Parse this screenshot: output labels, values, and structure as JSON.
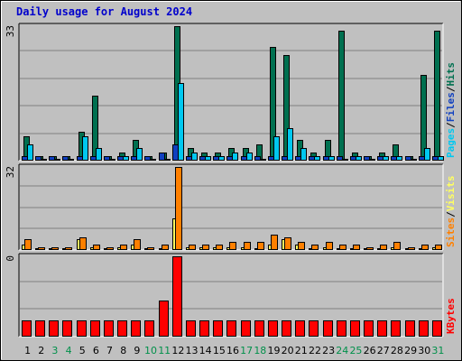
{
  "title": "Daily usage for August 2024",
  "colors": {
    "title": "#0000cc",
    "background": "#c0c0c0",
    "plot": "#c0c0c0",
    "grid": "#808080",
    "hits": "#007050",
    "files": "#00c8f0",
    "pages": "#1040c0",
    "visits": "#ffff60",
    "sites": "#ff8000",
    "kbytes": "#ff0000",
    "weekday_label": "#000000",
    "weekend_label": "#00904a"
  },
  "panels": {
    "top": {
      "max_label": "33",
      "legend": [
        {
          "label": "Pages",
          "color": "#00c8f0"
        },
        {
          "label": "/",
          "color": "#000000"
        },
        {
          "label": "Files",
          "color": "#1040c0"
        },
        {
          "label": "/",
          "color": "#000000"
        },
        {
          "label": "Hits",
          "color": "#007050"
        }
      ]
    },
    "middle": {
      "max_label": "32",
      "legend": [
        {
          "label": "Sites",
          "color": "#ff8000"
        },
        {
          "label": "/",
          "color": "#000000"
        },
        {
          "label": "Visits",
          "color": "#ffff60"
        }
      ]
    },
    "bottom": {
      "max_label": "0",
      "legend": [
        {
          "label": "KBytes",
          "color": "#ff0000"
        }
      ]
    }
  },
  "chart_data": {
    "type": "bar",
    "title": "Daily usage for August 2024",
    "categories": [
      "1",
      "2",
      "3",
      "4",
      "5",
      "6",
      "7",
      "8",
      "9",
      "10",
      "11",
      "12",
      "13",
      "14",
      "15",
      "16",
      "17",
      "18",
      "19",
      "20",
      "21",
      "22",
      "23",
      "24",
      "25",
      "26",
      "27",
      "28",
      "29",
      "30",
      "31"
    ],
    "weekend_days": [
      "3",
      "4",
      "10",
      "11",
      "17",
      "18",
      "24",
      "25",
      "31"
    ],
    "grid": true,
    "panels": [
      {
        "name": "hits-files-pages",
        "ylim": [
          0,
          33
        ],
        "series": [
          {
            "name": "Hits",
            "values": [
              6,
              1,
              1,
              1,
              7,
              16,
              1,
              2,
              5,
              1,
              2,
              33,
              3,
              2,
              2,
              3,
              3,
              4,
              28,
              26,
              5,
              2,
              5,
              32,
              2,
              1,
              2,
              4,
              1,
              21,
              32
            ]
          },
          {
            "name": "Files",
            "values": [
              4,
              0,
              0,
              0,
              6,
              3,
              0,
              1,
              3,
              0,
              0,
              19,
              2,
              1,
              1,
              2,
              2,
              0,
              6,
              8,
              3,
              1,
              1,
              0,
              1,
              0,
              1,
              1,
              0,
              3,
              1
            ]
          },
          {
            "name": "Pages",
            "values": [
              1,
              1,
              1,
              1,
              1,
              1,
              1,
              1,
              1,
              1,
              2,
              4,
              1,
              1,
              1,
              1,
              1,
              1,
              1,
              1,
              1,
              1,
              1,
              1,
              1,
              1,
              1,
              1,
              1,
              1,
              1
            ]
          }
        ]
      },
      {
        "name": "visits-sites",
        "ylim": [
          0,
          32
        ],
        "series": [
          {
            "name": "Visits",
            "values": [
              2,
              0,
              0,
              0,
              4,
              1,
              0,
              1,
              2,
              0,
              0,
              12,
              1,
              1,
              1,
              1,
              1,
              0,
              2,
              4,
              2,
              0,
              1,
              0,
              0,
              0,
              0,
              1,
              0,
              0,
              1
            ]
          },
          {
            "name": "Sites",
            "values": [
              4,
              1,
              1,
              1,
              5,
              2,
              1,
              2,
              4,
              1,
              2,
              32,
              2,
              2,
              2,
              3,
              3,
              3,
              6,
              5,
              3,
              2,
              3,
              2,
              2,
              1,
              2,
              3,
              1,
              2,
              2
            ]
          }
        ]
      },
      {
        "name": "kbytes",
        "ylim": [
          0,
          1
        ],
        "series": [
          {
            "name": "KBytes",
            "values": [
              0.2,
              0.2,
              0.2,
              0.2,
              0.2,
              0.2,
              0.2,
              0.2,
              0.2,
              0.2,
              0.45,
              1,
              0.2,
              0.2,
              0.2,
              0.2,
              0.2,
              0.2,
              0.2,
              0.2,
              0.2,
              0.2,
              0.2,
              0.2,
              0.2,
              0.2,
              0.2,
              0.2,
              0.2,
              0.2,
              0.2
            ]
          }
        ]
      }
    ]
  }
}
